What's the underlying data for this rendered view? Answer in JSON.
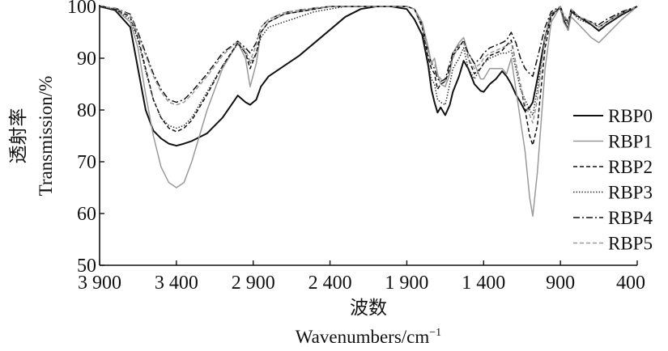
{
  "chart_data": {
    "type": "line",
    "title": "",
    "ylabel_cn": "透射率",
    "ylabel": "Transmission/%",
    "xlabel_cn": "波数",
    "xlabel": "Wavenumbers/cm",
    "xlabel_sup": "−1",
    "xlim": [
      3900,
      400
    ],
    "ylim": [
      50,
      100
    ],
    "x_ticks": [
      3900,
      3400,
      2900,
      2400,
      1900,
      1400,
      900,
      400
    ],
    "x_tick_labels": [
      "3 900",
      "3 400",
      "2 900",
      "2 400",
      "1 900",
      "1 400",
      "900",
      "400"
    ],
    "y_ticks": [
      50,
      60,
      70,
      80,
      90,
      100
    ],
    "y_tick_labels": [
      "50",
      "60",
      "70",
      "80",
      "90",
      "100"
    ],
    "grid": false,
    "legend_position": "right",
    "x": [
      3900,
      3800,
      3700,
      3650,
      3600,
      3550,
      3500,
      3450,
      3400,
      3350,
      3300,
      3200,
      3100,
      3000,
      2950,
      2920,
      2880,
      2850,
      2800,
      2700,
      2600,
      2500,
      2400,
      2300,
      2200,
      2100,
      2000,
      1900,
      1850,
      1800,
      1760,
      1740,
      1720,
      1700,
      1680,
      1650,
      1620,
      1600,
      1560,
      1530,
      1500,
      1460,
      1420,
      1400,
      1360,
      1320,
      1280,
      1250,
      1220,
      1190,
      1160,
      1130,
      1100,
      1080,
      1050,
      1000,
      960,
      900,
      880,
      850,
      830,
      780,
      700,
      650,
      600,
      500,
      400
    ],
    "series": [
      {
        "name": "RBP0",
        "color": "#111111",
        "dash": "",
        "values": [
          100,
          99.3,
          96,
          88,
          80,
          76,
          74.5,
          73.5,
          73.1,
          73.5,
          74,
          75.5,
          78.5,
          82.8,
          81.5,
          81,
          82,
          84.5,
          86.5,
          88.5,
          90.5,
          93,
          95.5,
          98,
          99.5,
          100,
          100,
          99.5,
          97.5,
          94.5,
          88.5,
          84,
          81.5,
          79.5,
          80.5,
          79,
          81,
          83.5,
          86.5,
          89.5,
          88,
          85,
          83.7,
          83.5,
          85,
          86,
          87.5,
          86.5,
          85,
          83,
          81.5,
          79.8,
          80.5,
          81.5,
          86,
          94,
          98.5,
          99.7,
          97.5,
          95.5,
          99,
          98,
          96.5,
          95.3,
          96.5,
          98.4,
          100
        ]
      },
      {
        "name": "RBP1",
        "color": "#999999",
        "dash": "",
        "values": [
          100,
          99.5,
          97,
          92,
          83,
          75,
          69,
          66,
          65,
          66,
          70,
          80,
          88,
          93,
          90,
          84.5,
          89,
          95,
          97,
          98.5,
          99,
          99.5,
          100,
          100,
          100,
          100,
          100,
          100,
          99.5,
          97,
          92,
          89,
          90,
          87,
          85,
          84.5,
          87,
          91,
          93,
          94,
          91,
          89,
          86,
          86,
          88,
          88,
          88,
          87,
          90,
          84,
          78,
          72,
          63,
          59.5,
          68,
          88,
          97,
          100,
          97,
          95.5,
          98,
          96.5,
          94,
          93,
          94.5,
          97.5,
          100
        ]
      },
      {
        "name": "RBP2",
        "color": "#111111",
        "dash": "5,3",
        "values": [
          100,
          99.5,
          98,
          94,
          88,
          82,
          78.5,
          76.5,
          75.8,
          76.5,
          78,
          83,
          88.5,
          93,
          91,
          88,
          91,
          95,
          97,
          98.5,
          99,
          99.5,
          100,
          100,
          100,
          100,
          100,
          100,
          99.5,
          96,
          90,
          88,
          87,
          84,
          85,
          85.5,
          88,
          90.5,
          92,
          93.5,
          90,
          87,
          88,
          89,
          90.5,
          91,
          91.5,
          92.5,
          93.5,
          89,
          85,
          80,
          75,
          73.2,
          77,
          92,
          98,
          100,
          98,
          97,
          99.5,
          98,
          97,
          96,
          97,
          98.8,
          100
        ]
      },
      {
        "name": "RBP3",
        "color": "#333333",
        "dash": "1.5,2",
        "values": [
          100,
          99.5,
          97.5,
          93.5,
          87.5,
          82,
          78.5,
          77,
          76.5,
          77,
          78.5,
          83.5,
          88.5,
          92.8,
          91,
          89,
          91,
          94,
          96,
          97,
          98,
          99,
          99.5,
          100,
          100,
          100,
          100,
          100,
          99.5,
          96,
          89,
          86,
          85,
          82,
          81.5,
          81,
          85,
          88,
          90,
          92,
          88,
          86,
          88,
          89,
          90,
          90.5,
          91,
          91,
          91.5,
          88,
          84,
          82,
          80,
          79,
          84,
          94,
          98.5,
          100,
          98,
          96.5,
          99,
          97.5,
          96.5,
          95.5,
          96.5,
          98.5,
          100
        ]
      },
      {
        "name": "RBP4",
        "color": "#111111",
        "dash": "8,3,2,3",
        "values": [
          100,
          99.7,
          98.5,
          95,
          91,
          87,
          84,
          82,
          81.5,
          82,
          83.5,
          87,
          91,
          93.3,
          92,
          91,
          93,
          96,
          97.5,
          98.8,
          99.3,
          99.7,
          100,
          100,
          100,
          100,
          100,
          100,
          99.5,
          96.5,
          91,
          89,
          88,
          86,
          85.5,
          86,
          89,
          91,
          92.5,
          93,
          91,
          89,
          90,
          91,
          92,
          92.5,
          93,
          93.5,
          95,
          93,
          90,
          88,
          87,
          86.5,
          90,
          96,
          99,
          100,
          98.5,
          97,
          99.5,
          98,
          97,
          96.5,
          97.5,
          99,
          100
        ]
      },
      {
        "name": "RBP5",
        "color": "#999999",
        "dash": "5,3",
        "values": [
          100,
          99.7,
          98.3,
          94.5,
          90.5,
          86.5,
          83.5,
          81.5,
          81,
          81.5,
          83,
          86.5,
          90.5,
          93.3,
          91.5,
          89.5,
          92.5,
          96,
          97.5,
          98.8,
          99.3,
          99.7,
          100,
          100,
          100,
          100,
          100,
          100,
          99.5,
          96.5,
          91,
          89,
          89,
          87,
          86,
          85.5,
          87,
          90,
          92.5,
          93,
          90,
          88,
          89,
          90,
          91,
          91.5,
          92,
          92.5,
          93,
          89,
          85,
          81,
          79,
          77.5,
          82,
          94,
          98.5,
          100,
          98.5,
          97,
          99.5,
          98,
          97,
          96,
          97,
          98.8,
          100
        ]
      }
    ]
  }
}
